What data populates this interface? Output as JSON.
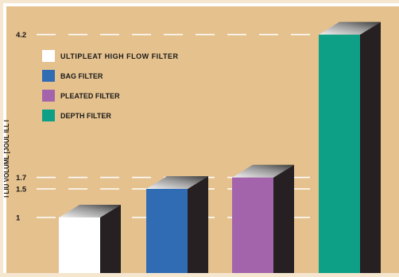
{
  "colors": {
    "page": "#f4e6cf",
    "panel": "#e5c18e",
    "border": "#ffffff",
    "gridline": "#ffffff",
    "dark_side": "#262022",
    "text": "#1a1a1a"
  },
  "chart_data": {
    "type": "bar",
    "title": "",
    "xlabel": "",
    "ylabel": "I LIU VOLUML [JOUL ILL I",
    "ylim": [
      0,
      4.6
    ],
    "yticks": [
      "4.2",
      "1.7",
      "1.5",
      "1"
    ],
    "ytick_values": [
      4.2,
      1.7,
      1.5,
      1.0
    ],
    "grid": "dashed horizontal lines at tick values",
    "legend_position": "top-left",
    "categories": [
      "ULTIPLEAT HIGH FLOW FILTER",
      "BAG FILTER",
      "PLEATED FILTER",
      "DEPTH FILTER"
    ],
    "series": [
      {
        "values": [
          1.0,
          1.5,
          1.7,
          4.2
        ],
        "colors": [
          "#ffffff",
          "#2f6cb4",
          "#a464ac",
          "#0ea086"
        ]
      }
    ],
    "style": "3d"
  }
}
